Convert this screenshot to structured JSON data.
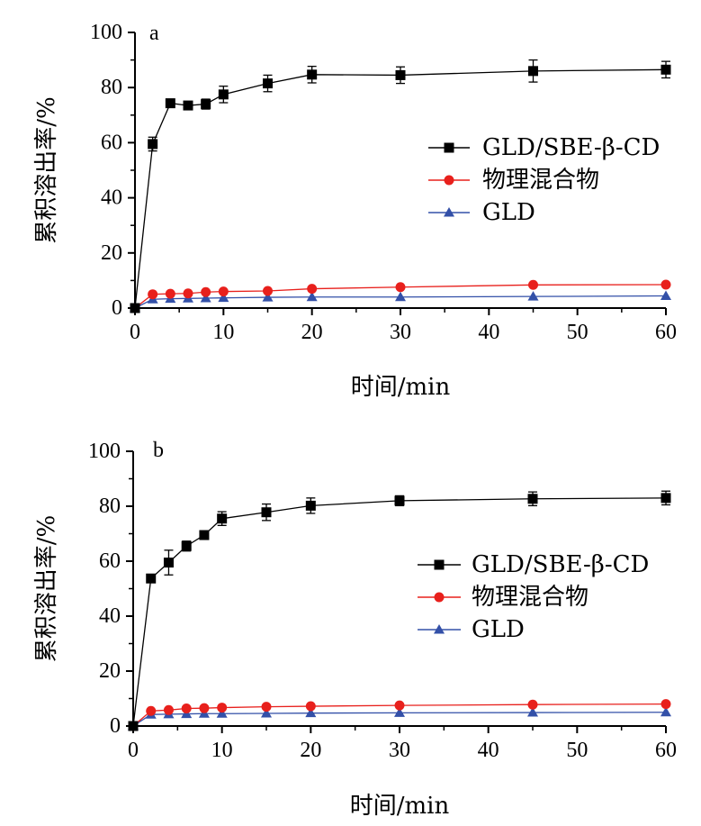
{
  "chart_data": [
    {
      "type": "line",
      "panel_label": "a",
      "xlabel": "时间/min",
      "ylabel": "累积溶出率/%",
      "xlim": [
        0,
        60
      ],
      "ylim": [
        0,
        100
      ],
      "x_ticks": [
        0,
        10,
        20,
        30,
        40,
        50,
        60
      ],
      "y_ticks": [
        0,
        20,
        40,
        60,
        80,
        100
      ],
      "legend_position": "right-middle",
      "series": [
        {
          "name": "GLD/SBE-β-CD",
          "color": "#000000",
          "marker": "square",
          "x": [
            0,
            2,
            4,
            6,
            8,
            10,
            15,
            20,
            30,
            45,
            60
          ],
          "y": [
            0,
            59.5,
            74.3,
            73.5,
            74,
            77.5,
            81.5,
            84.7,
            84.5,
            86,
            86.5
          ],
          "error": [
            0,
            2.5,
            1.5,
            1.2,
            1.8,
            3,
            3,
            3,
            3,
            4,
            3
          ]
        },
        {
          "name": "物理混合物",
          "color": "#e8201c",
          "marker": "circle",
          "x": [
            0,
            2,
            4,
            6,
            8,
            10,
            15,
            20,
            30,
            45,
            60
          ],
          "y": [
            0,
            5,
            5.2,
            5.3,
            5.8,
            6,
            6.2,
            7,
            7.6,
            8.4,
            8.5
          ],
          "error": []
        },
        {
          "name": "GLD",
          "color": "#3350a8",
          "marker": "triangle",
          "x": [
            0,
            2,
            4,
            6,
            8,
            10,
            15,
            20,
            30,
            45,
            60
          ],
          "y": [
            0,
            3.2,
            3.4,
            3.5,
            3.6,
            3.7,
            3.9,
            4,
            4,
            4.2,
            4.4
          ],
          "error": []
        }
      ]
    },
    {
      "type": "line",
      "panel_label": "b",
      "xlabel": "时间/min",
      "ylabel": "累积溶出率/%",
      "xlim": [
        0,
        60
      ],
      "ylim": [
        0,
        100
      ],
      "x_ticks": [
        0,
        10,
        20,
        30,
        40,
        50,
        60
      ],
      "y_ticks": [
        0,
        20,
        40,
        60,
        80,
        100
      ],
      "legend_position": "right-middle",
      "series": [
        {
          "name": "GLD/SBE-β-CD",
          "color": "#000000",
          "marker": "square",
          "x": [
            0,
            2,
            4,
            6,
            8,
            10,
            15,
            20,
            30,
            45,
            60
          ],
          "y": [
            0,
            53.7,
            59.5,
            65.5,
            69.5,
            75.5,
            77.8,
            80.2,
            82,
            82.7,
            83
          ],
          "error": [
            0,
            1.2,
            4.5,
            1.8,
            1.5,
            2.5,
            3,
            2.8,
            1.8,
            2.5,
            2.5
          ]
        },
        {
          "name": "物理混合物",
          "color": "#e8201c",
          "marker": "circle",
          "x": [
            0,
            2,
            4,
            6,
            8,
            10,
            15,
            20,
            30,
            45,
            60
          ],
          "y": [
            0,
            5.5,
            5.8,
            6.4,
            6.5,
            6.7,
            7,
            7.2,
            7.5,
            7.8,
            8
          ],
          "error": []
        },
        {
          "name": "GLD",
          "color": "#3350a8",
          "marker": "triangle",
          "x": [
            0,
            2,
            4,
            6,
            8,
            10,
            15,
            20,
            30,
            45,
            60
          ],
          "y": [
            0,
            4.2,
            4.3,
            4.4,
            4.5,
            4.5,
            4.6,
            4.7,
            4.8,
            4.9,
            5
          ],
          "error": []
        }
      ]
    }
  ]
}
